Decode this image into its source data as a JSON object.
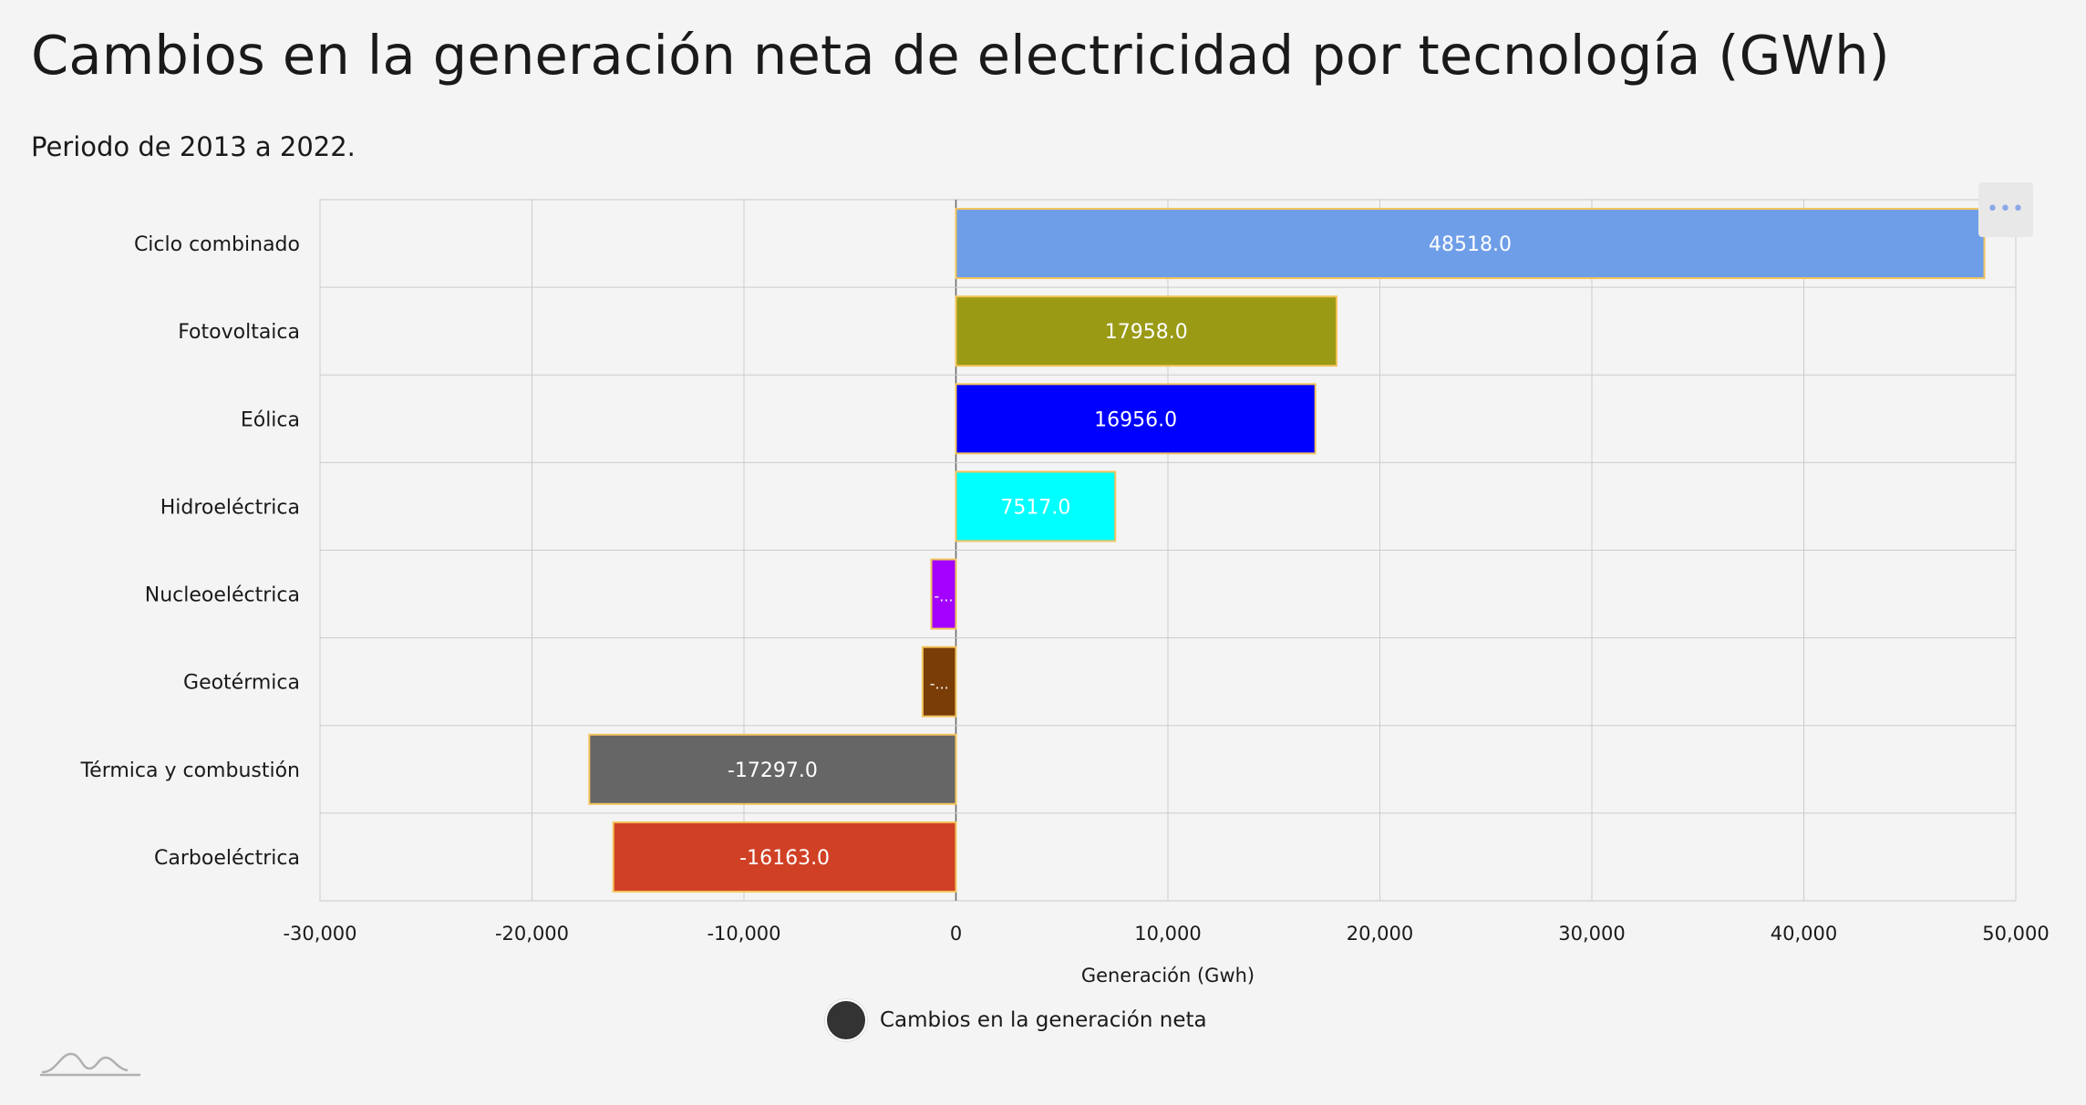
{
  "title": "Cambios en la generación neta de electricidad por tecnología (GWh)",
  "subtitle": "Periodo de 2013 a 2022.",
  "menu_icon": "ellipsis-icon",
  "legend": {
    "label": "Cambios en la generación neta",
    "color": "#333333"
  },
  "chart_data": {
    "type": "bar",
    "orientation": "horizontal",
    "categories": [
      "Ciclo combinado",
      "Fotovoltaica",
      "Eólica",
      "Hidroeléctrica",
      "Nucleoeléctrica",
      "Geotérmica",
      "Térmica y combustión",
      "Carboeléctrica"
    ],
    "values": [
      48518.0,
      17958.0,
      16956.0,
      7517.0,
      -1161.0,
      -1572.0,
      -17297.0,
      -16163.0
    ],
    "data_labels": [
      "48518.0",
      "17958.0",
      "16956.0",
      "7517.0",
      "-...",
      "-...",
      "-17297.0",
      "-16163.0"
    ],
    "colors": [
      "#6f9ee8",
      "#9a9a15",
      "#0000ff",
      "#00ffff",
      "#a300ff",
      "#7a3d07",
      "#666666",
      "#d04025"
    ],
    "bar_border_color": "#f2c45c",
    "label_color": "#ffffff",
    "xlim": [
      -30000,
      50000
    ],
    "xticks": [
      -30000,
      -20000,
      -10000,
      0,
      10000,
      20000,
      30000,
      40000,
      50000
    ],
    "xtick_labels": [
      "-30,000",
      "-20,000",
      "-10,000",
      "0",
      "10,000",
      "20,000",
      "30,000",
      "40,000",
      "50,000"
    ],
    "xlabel": "Generación (Gwh)",
    "series": [
      {
        "name": "Cambios en la generación neta",
        "values": [
          48518.0,
          17958.0,
          16956.0,
          7517.0,
          -1161.0,
          -1572.0,
          -17297.0,
          -16163.0
        ]
      }
    ],
    "grid": true
  }
}
